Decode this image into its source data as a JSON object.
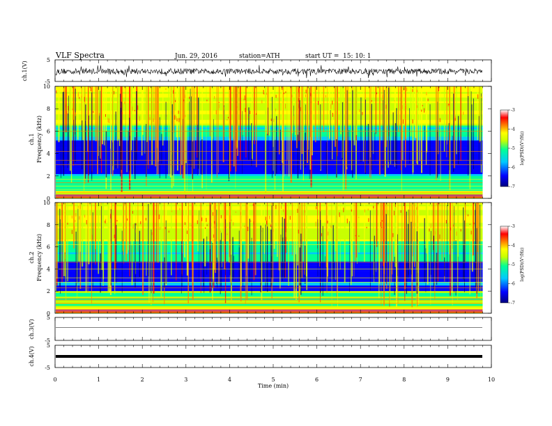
{
  "header": {
    "title": "VLF  Spectra",
    "date": "Jun. 29, 2016",
    "station": "station=ATH",
    "start_label": "start  UT =",
    "start_time": "15: 10: 1"
  },
  "chart_data": [
    {
      "type": "line",
      "id": "ch1-waveform",
      "ylabel": "ch.1(V)",
      "ylim": [
        -5,
        5
      ],
      "yticks": [
        "5",
        "-5"
      ],
      "xlim": [
        0,
        10
      ],
      "trace_extent_min": [
        0,
        9.8
      ],
      "baseline_v": 0,
      "color": "#000000",
      "description_values": {
        "noise_amplitude_v": 1.2
      }
    },
    {
      "type": "heatmap",
      "id": "ch1-spectrogram",
      "ylabel": "ch.1\nFrequency  (kHz)",
      "ylabel_lines": [
        "ch.1",
        "Frequency  (kHz)"
      ],
      "ylim": [
        0,
        10
      ],
      "yticks": [
        0,
        2,
        4,
        6,
        8,
        10
      ],
      "xlim": [
        0,
        10
      ],
      "data_extent_min": [
        0,
        9.8
      ],
      "colorbar": {
        "label": "log(PSD)(V²/Hz)",
        "range": [
          -7,
          -3
        ],
        "ticks": [
          "-3",
          "-4",
          "-5",
          "-6",
          "-7"
        ]
      }
    },
    {
      "type": "heatmap",
      "id": "ch2-spectrogram",
      "ylabel": "ch.2\nFrequency  (kHz)",
      "ylabel_lines": [
        "ch.2",
        "Frequency  (kHz)"
      ],
      "ylim": [
        0,
        10
      ],
      "yticks": [
        0,
        2,
        4,
        6,
        8,
        10
      ],
      "xlim": [
        0,
        10
      ],
      "data_extent_min": [
        0,
        9.8
      ],
      "colorbar": {
        "label": "log(PSD)(V²/Hz)",
        "range": [
          -7,
          -3
        ],
        "ticks": [
          "-3",
          "-4",
          "-5",
          "-6",
          "-7"
        ]
      }
    },
    {
      "type": "line",
      "id": "ch3-waveform",
      "ylabel": "ch.3(V)",
      "ylim": [
        -5,
        5
      ],
      "yticks": [
        "5",
        "-5"
      ],
      "xlim": [
        0,
        10
      ],
      "baseline_v": 0,
      "color": "#555555"
    },
    {
      "type": "line",
      "id": "ch4-waveform",
      "ylabel": "ch.4(V)",
      "ylim": [
        -5,
        5
      ],
      "yticks": [
        "5",
        "-5"
      ],
      "xlim": [
        0,
        10
      ],
      "baseline_v": 0,
      "color": "#000000"
    }
  ],
  "xaxis": {
    "label": "Time  (min)",
    "ticks": [
      "0",
      "1",
      "2",
      "3",
      "4",
      "5",
      "6",
      "7",
      "8",
      "9",
      "10"
    ]
  },
  "colors": {
    "spectrogram_scale": [
      "#000080",
      "#0000ff",
      "#00c8ff",
      "#00ff96",
      "#c8ff00",
      "#ffff00",
      "#ff8000",
      "#ff0000",
      "#ffffff"
    ]
  }
}
